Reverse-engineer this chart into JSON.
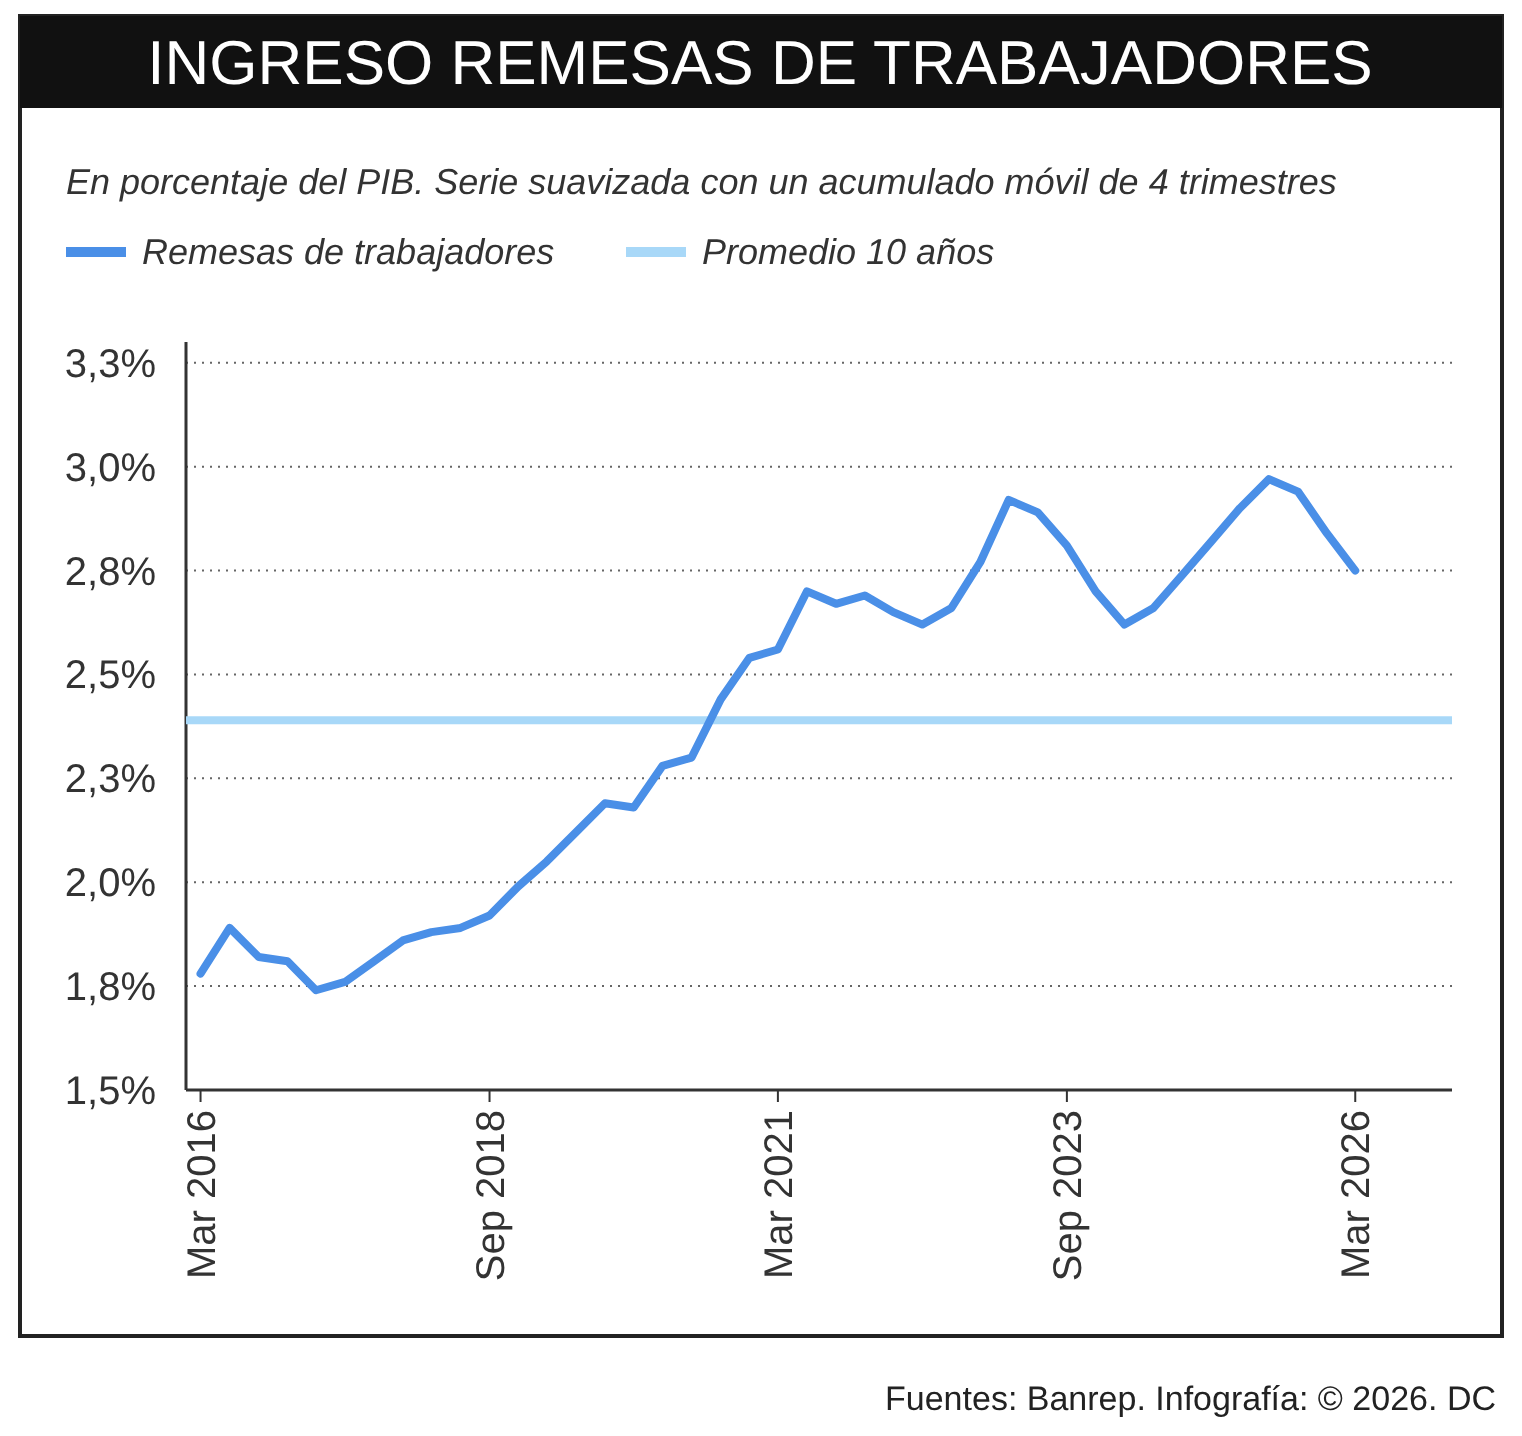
{
  "chart_data": {
    "type": "line",
    "title": "INGRESO REMESAS DE TRABAJADORES",
    "subtitle": "En porcentaje del PIB. Serie suavizada con un acumulado móvil de 4 trimestres",
    "x": [
      "2016-03",
      "2016-06",
      "2016-09",
      "2016-12",
      "2017-03",
      "2017-06",
      "2017-09",
      "2017-12",
      "2018-03",
      "2018-06",
      "2018-09",
      "2018-12",
      "2019-03",
      "2019-06",
      "2019-09",
      "2019-12",
      "2020-03",
      "2020-06",
      "2020-09",
      "2020-12",
      "2021-03",
      "2021-06",
      "2021-09",
      "2021-12",
      "2022-03",
      "2022-06",
      "2022-09",
      "2022-12",
      "2023-03",
      "2023-06",
      "2023-09",
      "2023-12",
      "2024-03",
      "2024-06",
      "2024-09",
      "2024-12",
      "2025-03",
      "2025-06",
      "2025-09",
      "2025-12",
      "2026-03"
    ],
    "series": [
      {
        "name": "Remesas de trabajadores",
        "color": "#4a8fe7",
        "values": [
          1.78,
          1.89,
          1.82,
          1.81,
          1.74,
          1.76,
          1.81,
          1.86,
          1.88,
          1.89,
          1.92,
          1.99,
          2.05,
          2.12,
          2.19,
          2.18,
          2.28,
          2.3,
          2.44,
          2.54,
          2.56,
          2.7,
          2.67,
          2.69,
          2.65,
          2.62,
          2.66,
          2.77,
          2.92,
          2.89,
          2.81,
          2.7,
          2.62,
          2.66,
          2.74,
          2.82,
          2.9,
          2.97,
          2.94,
          2.84,
          2.75
        ]
      }
    ],
    "ref_lines": [
      {
        "axis": "y",
        "value": 2.39,
        "label": "Promedio 10 años",
        "color": "#a8d8f8"
      }
    ],
    "xlim": [
      "2016-01-15",
      "2027-01"
    ],
    "xticks": [
      {
        "value": "2016-03",
        "label": "Mar 2016"
      },
      {
        "value": "2018-09",
        "label": "Sep 2018"
      },
      {
        "value": "2021-03",
        "label": "Mar 2021"
      },
      {
        "value": "2023-09",
        "label": "Sep 2023"
      },
      {
        "value": "2026-03",
        "label": "Mar 2026"
      }
    ],
    "ylim": [
      1.5,
      3.3
    ],
    "yticks": [
      {
        "value": 1.5,
        "label": "1,5%"
      },
      {
        "value": 1.75,
        "label": "1,8%"
      },
      {
        "value": 2.0,
        "label": "2,0%"
      },
      {
        "value": 2.25,
        "label": "2,3%"
      },
      {
        "value": 2.5,
        "label": "2,5%"
      },
      {
        "value": 2.75,
        "label": "2,8%"
      },
      {
        "value": 3.0,
        "label": "3,0%"
      },
      {
        "value": 3.25,
        "label": "3,3%"
      }
    ],
    "grid": "y",
    "legend": "top left",
    "marker": "none",
    "line_style": "solid",
    "annotations": [
      "Fuentes: Banrep. Infografía: © 2026. DC"
    ]
  }
}
